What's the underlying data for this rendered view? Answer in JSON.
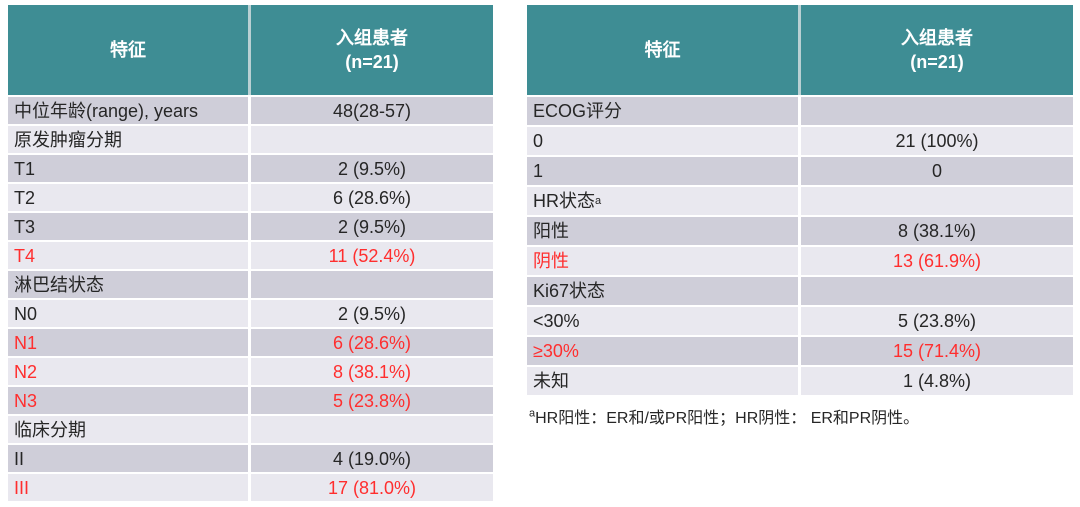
{
  "colors": {
    "header_teal": "#3e8d94",
    "header_divider": "#b9d0d3",
    "row_band_dark": "#cfced9",
    "row_band_light": "#e9e8ef",
    "highlight_red": "#ff2e2e",
    "text": "#262626"
  },
  "tables": [
    {
      "id": "baseline-characteristics-left",
      "header": {
        "col1": "特征",
        "col2_line1": "入组患者",
        "col2_line2": "(n=21)"
      },
      "rows": [
        {
          "label": "中位年龄(range), years",
          "value": "48(28-57)",
          "highlight": false
        },
        {
          "label": "原发肿瘤分期",
          "value": "",
          "highlight": false
        },
        {
          "label": "T1",
          "value": "2 (9.5%)",
          "highlight": false
        },
        {
          "label": "T2",
          "value": "6 (28.6%)",
          "highlight": false
        },
        {
          "label": "T3",
          "value": "2 (9.5%)",
          "highlight": false
        },
        {
          "label": "T4",
          "value": "11 (52.4%)",
          "highlight": true
        },
        {
          "label": "淋巴结状态",
          "value": "",
          "highlight": false
        },
        {
          "label": "N0",
          "value": "2 (9.5%)",
          "highlight": false
        },
        {
          "label": "N1",
          "value": "6 (28.6%)",
          "highlight": true
        },
        {
          "label": "N2",
          "value": "8 (38.1%)",
          "highlight": true
        },
        {
          "label": "N3",
          "value": "5 (23.8%)",
          "highlight": true
        },
        {
          "label": "临床分期",
          "value": "",
          "highlight": false
        },
        {
          "label": "II",
          "value": "4 (19.0%)",
          "highlight": false
        },
        {
          "label": "III",
          "value": "17 (81.0%)",
          "highlight": true
        }
      ]
    },
    {
      "id": "baseline-characteristics-right",
      "header": {
        "col1": "特征",
        "col2_line1": "入组患者",
        "col2_line2": "(n=21)"
      },
      "rows": [
        {
          "label": "ECOG评分",
          "value": "",
          "highlight": false
        },
        {
          "label": "0",
          "value": "21 (100%)",
          "highlight": false
        },
        {
          "label": "1",
          "value": "0",
          "highlight": false
        },
        {
          "label": "HR状态",
          "label_sup": "a",
          "value": "",
          "highlight": false
        },
        {
          "label": "阳性",
          "value": "8 (38.1%)",
          "highlight": false
        },
        {
          "label": "阴性",
          "value": "13 (61.9%)",
          "highlight": true
        },
        {
          "label": "Ki67状态",
          "value": "",
          "highlight": false
        },
        {
          "label": "<30%",
          "value": "5 (23.8%)",
          "highlight": false
        },
        {
          "label": "≥30%",
          "value": "15 (71.4%)",
          "highlight": true
        },
        {
          "label": "未知",
          "value": "1 (4.8%)",
          "highlight": false
        }
      ],
      "footnote": {
        "sup": "a",
        "text": "HR阳性：ER和/或PR阳性；HR阴性： ER和PR阴性。"
      }
    }
  ]
}
